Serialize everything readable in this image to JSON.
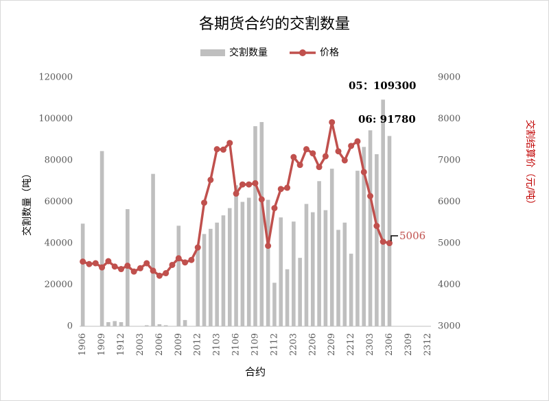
{
  "chart_data": {
    "type": "bar-line",
    "title": "各期货合约的交割数量",
    "x_label": "合约",
    "y_label": "交割数量（吨）",
    "y2_label": "交割结算价（元/吨）",
    "categories": [
      "1906",
      null,
      null,
      "1909",
      null,
      null,
      "1912",
      null,
      null,
      "2003",
      null,
      null,
      "2006",
      null,
      null,
      "2009",
      null,
      null,
      "2012",
      null,
      null,
      "2103",
      null,
      null,
      "2106",
      null,
      null,
      "2109",
      null,
      null,
      "2112",
      null,
      null,
      "2203",
      null,
      null,
      "2206",
      null,
      null,
      "2209",
      null,
      null,
      "2212",
      null,
      null,
      "2303",
      null,
      null,
      "2306",
      null,
      null,
      "2309",
      null,
      null,
      "2312"
    ],
    "series": [
      {
        "name": "交割数量",
        "type": "bar",
        "color": "#bfbfbf",
        "values": [
          49500,
          0,
          0,
          84500,
          2000,
          2500,
          2000,
          56500,
          0,
          0,
          500,
          73500,
          1000,
          500,
          0,
          48500,
          3000,
          0,
          38000,
          44500,
          47000,
          50000,
          53500,
          57000,
          68000,
          60000,
          62000,
          96500,
          98500,
          61000,
          21000,
          52500,
          27500,
          50500,
          33000,
          59000,
          55000,
          70000,
          56000,
          76000,
          46500,
          50000,
          35000,
          75000,
          86500,
          94500,
          83000,
          109300,
          91780,
          null,
          null,
          null,
          null,
          null,
          null
        ]
      },
      {
        "name": "价格",
        "type": "line",
        "axis": "y2",
        "color": "#c0504d",
        "values": [
          4560,
          4500,
          4520,
          4420,
          4570,
          4440,
          4380,
          4460,
          4320,
          4400,
          4520,
          4340,
          4220,
          4280,
          4480,
          4640,
          4540,
          4600,
          4900,
          5980,
          6530,
          7270,
          7260,
          7420,
          6200,
          6420,
          6420,
          6450,
          6060,
          4940,
          5850,
          6310,
          6340,
          7080,
          6890,
          7270,
          7170,
          6840,
          7100,
          7920,
          7220,
          7000,
          7350,
          7460,
          6720,
          6140,
          5420,
          5040,
          5006,
          null,
          null,
          null,
          null,
          null,
          null
        ]
      }
    ],
    "ylim": [
      0,
      120000
    ],
    "yticks": [
      0,
      20000,
      40000,
      60000,
      80000,
      100000,
      120000
    ],
    "y2lim": [
      3000,
      9000
    ],
    "y2ticks": [
      3000,
      4000,
      5000,
      6000,
      7000,
      8000,
      9000
    ],
    "annotations": [
      "05：109300",
      "06: 91780",
      "5006"
    ],
    "legend": "top"
  }
}
